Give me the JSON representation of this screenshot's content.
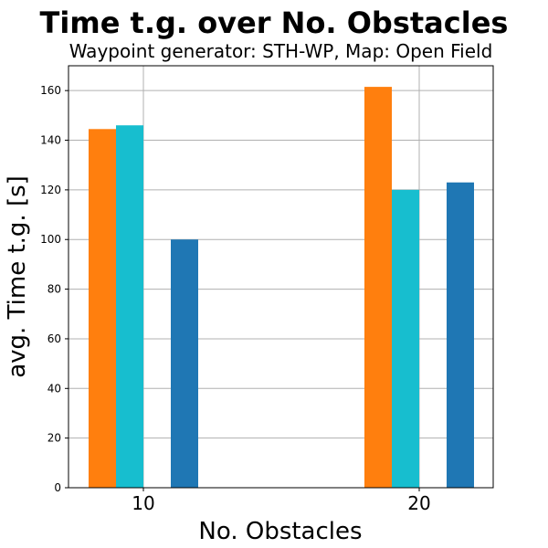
{
  "chart_data": {
    "type": "bar",
    "title": "Time t.g. over No. Obstacles",
    "subtitle": "Waypoint generator: STH-WP, Map: Open Field",
    "xlabel": "No. Obstacles",
    "ylabel": "avg. Time t.g. [s]",
    "categories": [
      "10",
      "20"
    ],
    "yticks": [
      0,
      20,
      40,
      60,
      80,
      100,
      120,
      140,
      160
    ],
    "ylim": [
      0,
      170
    ],
    "grid": true,
    "series": [
      {
        "values": [
          144.5,
          161.5
        ],
        "color": "#ff7f0e"
      },
      {
        "values": [
          146,
          120
        ],
        "color": "#17becf"
      },
      {
        "values": [
          100,
          123
        ],
        "color": "#1f77b4"
      }
    ]
  }
}
